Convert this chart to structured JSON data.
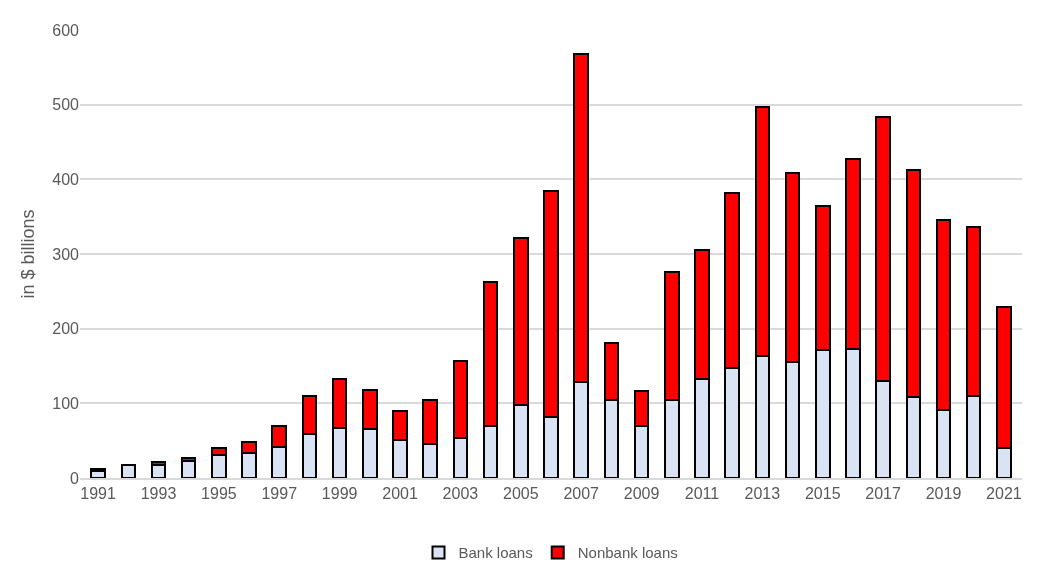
{
  "chart_data": {
    "type": "bar",
    "stacked": true,
    "ylabel": "in $ billions",
    "categories": [
      "1991",
      null,
      "1993",
      null,
      "1995",
      null,
      "1997",
      null,
      "1999",
      null,
      "2001",
      null,
      "2003",
      null,
      "2005",
      null,
      "2007",
      null,
      "2009",
      null,
      "2011",
      null,
      "2013",
      null,
      "2015",
      null,
      "2017",
      null,
      "2019",
      null,
      "2021"
    ],
    "series": [
      {
        "name": "Bank loans",
        "color": "#dae3f3",
        "values": [
          10,
          17,
          17,
          23,
          31,
          34,
          42,
          59,
          67,
          65,
          51,
          46,
          54,
          70,
          98,
          82,
          128,
          104,
          69,
          105,
          133,
          147,
          163,
          156,
          172,
          173,
          130,
          108,
          91,
          110,
          40
        ]
      },
      {
        "name": "Nonbank loans",
        "color": "#ff0000",
        "values": [
          2,
          1,
          4,
          4,
          9,
          14,
          28,
          51,
          65,
          53,
          39,
          59,
          103,
          192,
          223,
          303,
          440,
          77,
          48,
          171,
          173,
          235,
          334,
          252,
          192,
          254,
          353,
          305,
          255,
          226,
          189
        ]
      }
    ],
    "ylim": [
      0,
      600
    ],
    "yticks": [
      0,
      100,
      200,
      300,
      400,
      500,
      600
    ],
    "grid": "y",
    "legend": "bottom"
  }
}
